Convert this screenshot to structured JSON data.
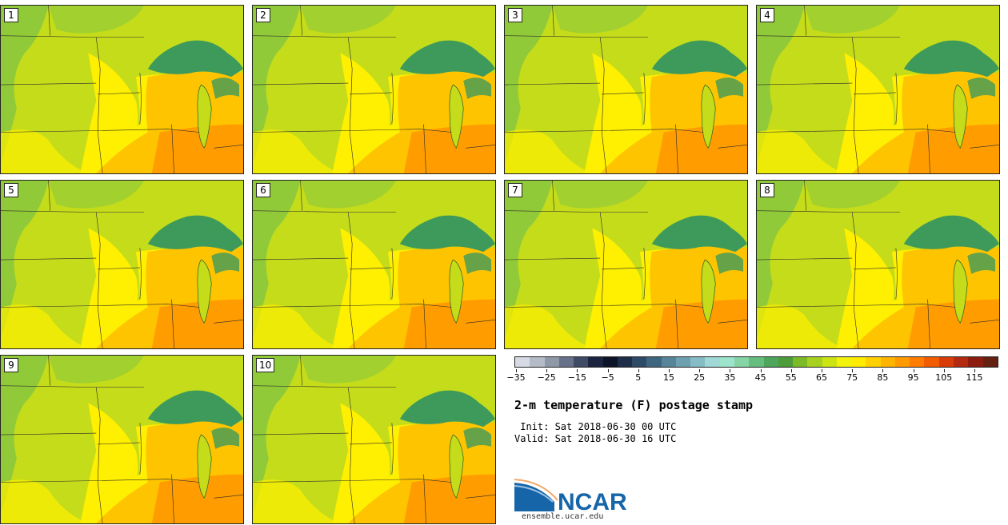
{
  "stamps": [
    {
      "label": "1"
    },
    {
      "label": "2"
    },
    {
      "label": "3"
    },
    {
      "label": "4"
    },
    {
      "label": "5"
    },
    {
      "label": "6"
    },
    {
      "label": "7"
    },
    {
      "label": "8"
    },
    {
      "label": "9"
    },
    {
      "label": "10"
    }
  ],
  "colorbar": {
    "colors": [
      "#d6dae4",
      "#b5bcc8",
      "#8f98a8",
      "#67718a",
      "#3f4a66",
      "#1c2440",
      "#0c1428",
      "#1e2e48",
      "#2d4a66",
      "#3f6680",
      "#58849a",
      "#6fa0b0",
      "#86bcc6",
      "#9fd8d6",
      "#9ce4cc",
      "#86d4a6",
      "#66be7e",
      "#4ea65c",
      "#4c9c3a",
      "#7cba28",
      "#a8d01e",
      "#cce412",
      "#f2f20c",
      "#ffec00",
      "#ffd000",
      "#ffb400",
      "#ff9a00",
      "#ff7c00",
      "#f45c00",
      "#d83c08",
      "#b42a10",
      "#8c1c10",
      "#642010"
    ],
    "ticks": [
      "−35",
      "−25",
      "−15",
      "−5",
      "5",
      "15",
      "25",
      "35",
      "45",
      "55",
      "65",
      "75",
      "85",
      "95",
      "105",
      "115"
    ]
  },
  "title": "2-m temperature (F) postage stamp",
  "init": " Init: Sat 2018-06-30 00 UTC",
  "valid": "Valid: Sat 2018-06-30 16 UTC",
  "logo": {
    "text": "NCAR",
    "url": "ensemble.ucar.edu"
  },
  "colors": {
    "lake": "#3e9a5a",
    "green": "#8cc83c",
    "yellowgreen": "#c4dc1a",
    "yellow": "#ffef00",
    "orange": "#ffc400",
    "deeporange": "#ff9c00"
  }
}
